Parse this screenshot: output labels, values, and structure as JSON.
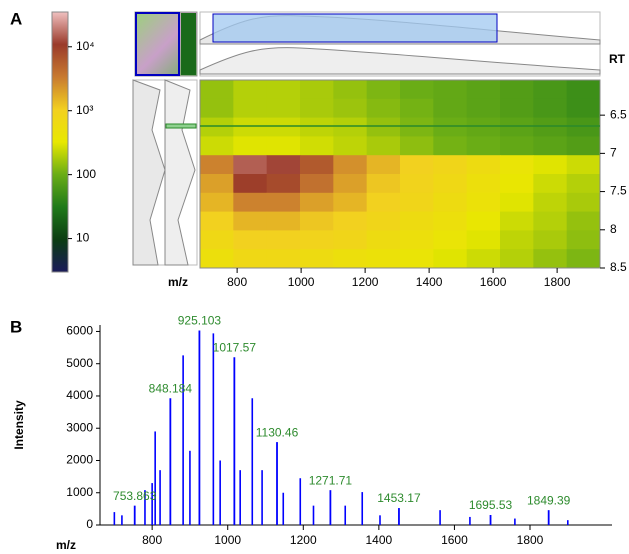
{
  "panels": [
    "A",
    "B"
  ],
  "chart_data": [
    {
      "type": "colorbar",
      "scale": "log",
      "ylim": [
        3,
        35000
      ],
      "yticks": [
        {
          "value": 10000,
          "label": "10⁴"
        },
        {
          "value": 1000,
          "label": "10³"
        },
        100,
        10
      ],
      "colors": [
        "#1b1b5a",
        "#0b3d12",
        "#1f7a1a",
        "#6aad16",
        "#e8e800",
        "#f2d020",
        "#c87a30",
        "#9a3a2a",
        "#f0c0c0"
      ]
    },
    {
      "type": "heatmap",
      "xlabel": "m/z",
      "ylabel": "RT",
      "xlim": [
        684,
        1934
      ],
      "ylim": [
        6.04,
        8.5
      ],
      "xticks": [
        800,
        1000,
        1200,
        1400,
        1600,
        1800
      ],
      "yticks": [
        6.5,
        7,
        7.5,
        8,
        8.5
      ],
      "z": [
        [
          150,
          200,
          200,
          180,
          150,
          120,
          100,
          90,
          80,
          70,
          60,
          50
        ],
        [
          150,
          200,
          200,
          180,
          160,
          130,
          110,
          90,
          80,
          70,
          60,
          50
        ],
        [
          200,
          250,
          250,
          220,
          200,
          150,
          120,
          100,
          90,
          80,
          70,
          60
        ],
        [
          250,
          300,
          300,
          260,
          220,
          180,
          140,
          110,
          100,
          90,
          80,
          70
        ],
        [
          3000,
          15000,
          12000,
          6000,
          2500,
          1500,
          1000,
          800,
          600,
          400,
          300,
          250
        ],
        [
          2000,
          10000,
          8000,
          4000,
          2000,
          1200,
          900,
          700,
          500,
          350,
          250,
          200
        ],
        [
          1500,
          3000,
          3000,
          2000,
          1500,
          1000,
          800,
          600,
          450,
          300,
          220,
          180
        ],
        [
          1000,
          1500,
          1500,
          1200,
          1000,
          800,
          600,
          500,
          350,
          250,
          200,
          150
        ],
        [
          700,
          1000,
          1000,
          900,
          800,
          600,
          500,
          400,
          300,
          220,
          180,
          140
        ],
        [
          500,
          700,
          700,
          600,
          500,
          450,
          400,
          300,
          250,
          200,
          150,
          120
        ]
      ]
    },
    {
      "type": "spectrum",
      "xlabel": "m/z",
      "ylabel": "Intensity",
      "color": "#0000ff",
      "label_color": "#2e8b2e",
      "xlim": [
        662,
        2017
      ],
      "ylim": [
        0,
        6200
      ],
      "xticks": [
        800,
        1000,
        1200,
        1400,
        1600,
        1800
      ],
      "yticks": [
        0,
        1000,
        2000,
        3000,
        4000,
        5000,
        6000
      ],
      "x": [
        700,
        720,
        781,
        800,
        808,
        821,
        882,
        900,
        962,
        980,
        1033,
        1065,
        1091,
        1147,
        1192,
        1227,
        1311,
        1356,
        1403,
        1562,
        1641,
        1760,
        1900
      ],
      "values": [
        400,
        300,
        1080,
        1300,
        2900,
        1700,
        5260,
        2300,
        5940,
        2000,
        1700,
        3930,
        1700,
        1000,
        1450,
        600,
        600,
        1020,
        300,
        460,
        250,
        200,
        150
      ],
      "labeled_peaks": {
        "x": [
          753.863,
          848.184,
          925.103,
          1017.57,
          1130.46,
          1271.71,
          1453.17,
          1695.53,
          1849.39
        ],
        "values": [
          600,
          3930,
          6030,
          5200,
          2570,
          1080,
          525,
          310,
          460
        ]
      }
    }
  ]
}
